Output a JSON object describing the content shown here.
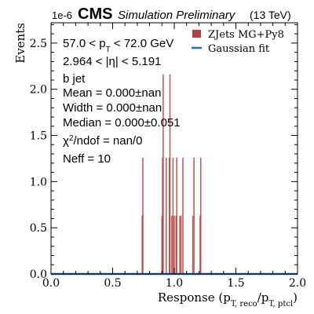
{
  "chart_data": {
    "type": "bar",
    "header": {
      "scale": "1e-6",
      "experiment": "CMS",
      "status": "Simulation Preliminary",
      "energy": "(13 TeV)"
    },
    "xlabel": "Response (p_T,reco/p_T,ptcl)",
    "ylabel": "Events",
    "xlim": [
      0.0,
      2.0
    ],
    "ylim": [
      0.0,
      2.72
    ],
    "x_ticks": [
      0.0,
      0.5,
      1.0,
      1.5,
      2.0
    ],
    "x_tick_labels": [
      "0.0",
      "0.5",
      "1.0",
      "1.5",
      "2.0"
    ],
    "y_ticks": [
      0.0,
      0.5,
      1.0,
      1.5,
      2.0,
      2.5
    ],
    "y_tick_labels": [
      "0.0",
      "0.5",
      "1.0",
      "1.5",
      "2.0",
      "2.5"
    ],
    "legend_position": "top-right",
    "legend": [
      {
        "label": "ZJets MG+Py8",
        "type": "bar",
        "color": "#b3403f"
      },
      {
        "label": "Gaussian fit",
        "type": "line",
        "color": "#1f6fc4"
      }
    ],
    "annotations": [
      "57.0 < p_T < 72.0 GeV",
      "2.964 < |η| < 5.191",
      "b jet",
      "Mean = 0.000±nan",
      "Width = 0.000±nan",
      "Median = 0.000±0.051",
      "χ²/ndof = nan/0",
      "Neff = 10"
    ],
    "series": [
      {
        "name": "ZJets MG+Py8",
        "type": "bar",
        "color": "#b3403f",
        "bin_width": 0.01,
        "bins": [
          {
            "x": 0.74,
            "y": 0.63
          },
          {
            "x": 0.745,
            "y": 1.26
          },
          {
            "x": 0.9,
            "y": 0.63
          },
          {
            "x": 0.905,
            "y": 1.26
          },
          {
            "x": 0.91,
            "y": 2.16
          },
          {
            "x": 0.935,
            "y": 1.26
          },
          {
            "x": 0.96,
            "y": 1.26
          },
          {
            "x": 0.965,
            "y": 2.16
          },
          {
            "x": 0.98,
            "y": 0.63
          },
          {
            "x": 0.99,
            "y": 1.26
          },
          {
            "x": 1.0,
            "y": 0.63
          },
          {
            "x": 1.015,
            "y": 0.63
          },
          {
            "x": 1.02,
            "y": 1.26
          },
          {
            "x": 1.045,
            "y": 0.63
          },
          {
            "x": 1.055,
            "y": 0.63
          },
          {
            "x": 1.07,
            "y": 1.26
          },
          {
            "x": 1.15,
            "y": 0.63
          },
          {
            "x": 1.16,
            "y": 1.26
          },
          {
            "x": 1.21,
            "y": 0.63
          },
          {
            "x": 1.215,
            "y": 1.26
          }
        ]
      },
      {
        "name": "Gaussian fit",
        "type": "line",
        "color": "#1f6fc4",
        "x": [
          0.0,
          2.0
        ],
        "y": [
          0.0,
          0.0
        ]
      }
    ]
  }
}
